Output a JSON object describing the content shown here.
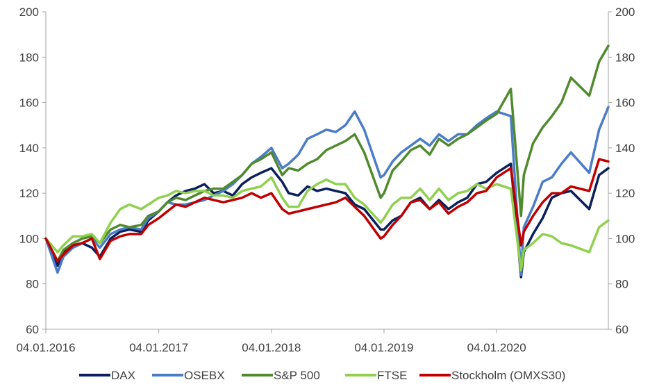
{
  "chart_data": {
    "type": "line",
    "title": "",
    "xlabel": "",
    "ylabel": "",
    "ylim": [
      60,
      200
    ],
    "y_ticks": [
      60,
      80,
      100,
      120,
      140,
      160,
      180,
      200
    ],
    "y_tick_labels": [
      "60",
      "80",
      "100",
      "120",
      "140",
      "160",
      "180",
      "200"
    ],
    "secondary_y_axis": true,
    "x_ticks": [
      "04.01.2016",
      "04.01.2017",
      "04.01.2018",
      "04.01.2019",
      "04.01.2020"
    ],
    "x_range": [
      "2016-01-04",
      "2020-12-31"
    ],
    "grid": false,
    "legend_position": "bottom",
    "x": [
      "2016-01-04",
      "2016-02-11",
      "2016-03-01",
      "2016-04-01",
      "2016-05-01",
      "2016-06-01",
      "2016-06-27",
      "2016-08-01",
      "2016-09-01",
      "2016-10-01",
      "2016-11-08",
      "2016-12-01",
      "2017-01-04",
      "2017-02-01",
      "2017-03-01",
      "2017-04-01",
      "2017-05-01",
      "2017-06-01",
      "2017-07-01",
      "2017-08-01",
      "2017-09-01",
      "2017-10-01",
      "2017-11-01",
      "2017-12-01",
      "2018-01-04",
      "2018-02-08",
      "2018-03-01",
      "2018-04-01",
      "2018-05-01",
      "2018-06-01",
      "2018-07-01",
      "2018-08-01",
      "2018-09-01",
      "2018-10-01",
      "2018-11-01",
      "2018-12-24",
      "2019-01-04",
      "2019-02-01",
      "2019-03-01",
      "2019-04-01",
      "2019-05-01",
      "2019-06-01",
      "2019-07-01",
      "2019-08-01",
      "2019-09-01",
      "2019-10-01",
      "2019-11-01",
      "2019-12-01",
      "2020-01-04",
      "2020-02-19",
      "2020-03-23",
      "2020-04-01",
      "2020-05-01",
      "2020-06-01",
      "2020-07-01",
      "2020-08-01",
      "2020-09-01",
      "2020-10-30",
      "2020-12-01",
      "2020-12-31"
    ],
    "series": [
      {
        "name": "DAX",
        "color": "#0a1f5c",
        "values": [
          100,
          88,
          94,
          97,
          98,
          96,
          92,
          100,
          103,
          104,
          103,
          108,
          112,
          116,
          119,
          121,
          122,
          124,
          120,
          121,
          119,
          124,
          127,
          129,
          131,
          125,
          120,
          119,
          123,
          121,
          122,
          121,
          120,
          115,
          113,
          104,
          104,
          108,
          110,
          116,
          118,
          113,
          117,
          113,
          116,
          118,
          124,
          125,
          129,
          133,
          83,
          94,
          102,
          109,
          118,
          120,
          121,
          113,
          128,
          131
        ]
      },
      {
        "name": "OSEBX",
        "color": "#4a7cc8",
        "values": [
          100,
          85,
          92,
          96,
          98,
          100,
          96,
          102,
          104,
          105,
          104,
          109,
          112,
          116,
          115,
          115,
          116,
          117,
          119,
          121,
          124,
          128,
          133,
          136,
          140,
          131,
          133,
          137,
          144,
          146,
          148,
          147,
          150,
          156,
          148,
          127,
          128,
          134,
          138,
          141,
          144,
          141,
          146,
          143,
          146,
          146,
          150,
          153,
          156,
          154,
          84,
          105,
          114,
          125,
          127,
          133,
          138,
          129,
          148,
          158
        ]
      },
      {
        "name": "S&P 500",
        "color": "#4f8a2e",
        "values": [
          100,
          90,
          95,
          98,
          100,
          101,
          98,
          104,
          106,
          105,
          106,
          110,
          112,
          116,
          118,
          117,
          119,
          121,
          122,
          122,
          125,
          128,
          133,
          135,
          138,
          128,
          131,
          130,
          133,
          135,
          139,
          141,
          143,
          146,
          138,
          118,
          120,
          130,
          134,
          139,
          141,
          137,
          144,
          141,
          144,
          146,
          149,
          152,
          155,
          166,
          110,
          128,
          142,
          149,
          154,
          160,
          171,
          163,
          178,
          185
        ]
      },
      {
        "name": "FTSE",
        "color": "#8fd14f",
        "values": [
          100,
          94,
          97,
          101,
          101,
          102,
          98,
          107,
          113,
          115,
          113,
          115,
          118,
          119,
          121,
          120,
          121,
          121,
          119,
          119,
          118,
          121,
          122,
          123,
          127,
          118,
          114,
          114,
          121,
          124,
          126,
          124,
          124,
          118,
          115,
          107,
          109,
          115,
          118,
          118,
          122,
          117,
          122,
          117,
          120,
          121,
          124,
          122,
          124,
          122,
          86,
          95,
          98,
          102,
          101,
          98,
          97,
          94,
          105,
          108
        ]
      },
      {
        "name": "Stockholm (OMXS30)",
        "color": "#c00000",
        "values": [
          100,
          90,
          93,
          97,
          98,
          100,
          91,
          99,
          101,
          102,
          102,
          106,
          109,
          112,
          115,
          114,
          116,
          118,
          117,
          116,
          117,
          118,
          120,
          118,
          120,
          113,
          111,
          112,
          113,
          114,
          115,
          116,
          118,
          114,
          110,
          100,
          101,
          106,
          110,
          116,
          117,
          113,
          116,
          111,
          114,
          116,
          120,
          121,
          127,
          131,
          97,
          103,
          110,
          116,
          120,
          120,
          123,
          121,
          135,
          134
        ]
      }
    ]
  }
}
